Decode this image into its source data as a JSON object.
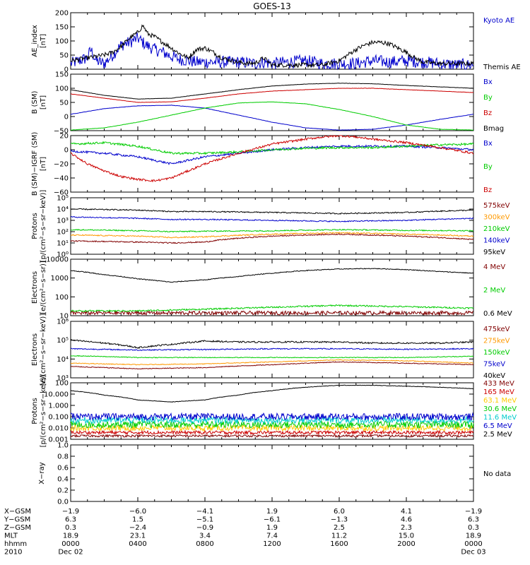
{
  "title": "GOES-13",
  "chart_data": [
    {
      "type": "line",
      "ylabel": "AE_index",
      "yunit": "[nT]",
      "yscale": "linear",
      "ylim": [
        0,
        200
      ],
      "yticks": [
        0,
        50,
        100,
        150,
        200
      ],
      "ytick_labels": [
        "0",
        "50",
        "100",
        "150",
        "200"
      ],
      "series": [
        {
          "name": "Kyoto AE",
          "color": "#0000cc",
          "noise": 22,
          "x": [
            0,
            0.5,
            1,
            1.2,
            1.5,
            2,
            2.5,
            3,
            3.5,
            4,
            4.5,
            5,
            5.5,
            6,
            6.5,
            7,
            7.5,
            8,
            9,
            10,
            11,
            11.5,
            12,
            13,
            14,
            15,
            16,
            17,
            18,
            19,
            20,
            21,
            22,
            23,
            24
          ],
          "y": [
            20,
            30,
            40,
            70,
            30,
            20,
            50,
            85,
            95,
            110,
            85,
            70,
            60,
            45,
            35,
            30,
            25,
            25,
            25,
            25,
            20,
            25,
            20,
            25,
            30,
            20,
            20,
            20,
            30,
            25,
            30,
            25,
            20,
            15,
            15
          ]
        },
        {
          "name": "Themis AE",
          "color": "#000000",
          "noise": 8,
          "x": [
            0,
            0.5,
            1,
            1.5,
            2,
            2.5,
            3,
            3.5,
            4,
            4.3,
            4.6,
            5,
            5.5,
            6,
            6.5,
            7,
            7.5,
            8,
            8.5,
            9,
            10,
            10.5,
            11,
            11.5,
            12,
            13,
            14,
            15,
            16,
            16.5,
            17,
            17.5,
            18,
            18.5,
            19,
            19.5,
            20,
            20.5,
            21,
            22,
            23,
            24
          ],
          "y": [
            30,
            35,
            40,
            45,
            50,
            60,
            80,
            110,
            130,
            155,
            125,
            115,
            95,
            75,
            55,
            40,
            70,
            75,
            60,
            40,
            25,
            20,
            22,
            40,
            15,
            15,
            15,
            15,
            30,
            50,
            70,
            85,
            95,
            95,
            90,
            75,
            60,
            40,
            25,
            20,
            20,
            20
          ]
        }
      ]
    },
    {
      "type": "line",
      "ylabel": "B (SM)",
      "yunit": "[nT]",
      "yscale": "linear",
      "ylim": [
        -50,
        150
      ],
      "yticks": [
        -50,
        0,
        50,
        100,
        150
      ],
      "ytick_labels": [
        "−50",
        "0",
        "50",
        "100",
        "150"
      ],
      "series": [
        {
          "name": "Bx",
          "color": "#0000cc",
          "noise": 0.5,
          "x": [
            0,
            2,
            4,
            6,
            8,
            10,
            12,
            14,
            16,
            18,
            20,
            22,
            24
          ],
          "y": [
            8,
            28,
            38,
            40,
            30,
            5,
            -20,
            -40,
            -48,
            -45,
            -30,
            -10,
            8
          ]
        },
        {
          "name": "By",
          "color": "#00cc00",
          "noise": 0.5,
          "x": [
            0,
            2,
            4,
            6,
            8,
            10,
            12,
            14,
            16,
            18,
            20,
            22,
            24
          ],
          "y": [
            -48,
            -40,
            -20,
            5,
            30,
            48,
            52,
            45,
            25,
            0,
            -30,
            -45,
            -48
          ]
        },
        {
          "name": "Bz",
          "color": "#cc0000",
          "noise": 0.5,
          "x": [
            0,
            2,
            4,
            6,
            8,
            10,
            12,
            14,
            16,
            18,
            20,
            22,
            24
          ],
          "y": [
            80,
            65,
            50,
            52,
            65,
            80,
            90,
            95,
            100,
            100,
            95,
            90,
            85
          ]
        },
        {
          "name": "Bmag",
          "color": "#000000",
          "noise": 0.5,
          "x": [
            0,
            2,
            4,
            6,
            8,
            10,
            12,
            14,
            16,
            18,
            20,
            22,
            24
          ],
          "y": [
            95,
            75,
            62,
            65,
            80,
            95,
            108,
            115,
            118,
            116,
            110,
            105,
            100
          ]
        }
      ]
    },
    {
      "type": "line",
      "ylabel": "B (SM)−IGRF (SM)",
      "yunit": "[nT]",
      "yscale": "linear",
      "ylim": [
        -60,
        20
      ],
      "yticks": [
        -60,
        -40,
        -20,
        0,
        20
      ],
      "ytick_labels": [
        "−60",
        "−40",
        "−20",
        "0",
        "20"
      ],
      "series": [
        {
          "name": "Bx",
          "color": "#0000cc",
          "noise": 1.5,
          "x": [
            0,
            2,
            4,
            6,
            8,
            10,
            12,
            14,
            16,
            18,
            20,
            22,
            24
          ],
          "y": [
            -2,
            -5,
            -10,
            -20,
            -10,
            -5,
            0,
            3,
            5,
            5,
            5,
            3,
            0
          ]
        },
        {
          "name": "By",
          "color": "#00cc00",
          "noise": 1.5,
          "x": [
            0,
            2,
            4,
            6,
            8,
            10,
            12,
            14,
            16,
            18,
            20,
            22,
            24
          ],
          "y": [
            8,
            10,
            5,
            -5,
            -5,
            -3,
            0,
            2,
            3,
            3,
            5,
            7,
            8
          ]
        },
        {
          "name": "Bz",
          "color": "#cc0000",
          "noise": 1.5,
          "x": [
            0,
            1,
            2,
            3,
            4,
            5,
            6,
            7,
            8,
            10,
            12,
            14,
            15,
            16,
            17,
            18,
            20,
            22,
            24
          ],
          "y": [
            -5,
            -20,
            -30,
            -38,
            -42,
            -44,
            -40,
            -30,
            -20,
            -5,
            8,
            15,
            18,
            20,
            18,
            15,
            10,
            3,
            -5
          ]
        }
      ]
    },
    {
      "type": "line",
      "ylabel": "Protons",
      "yunit": "[p/(cm²−s−sr−keV)]",
      "yscale": "log",
      "ylim": [
        1,
        100000
      ],
      "yticks": [
        1,
        10,
        100,
        1000,
        10000,
        100000
      ],
      "ytick_labels": [
        "10⁰",
        "10¹",
        "10²",
        "10³",
        "10⁴",
        "10⁵"
      ],
      "series": [
        {
          "name": "575keV",
          "color": "#800000",
          "noise": 0.05,
          "x": [
            0,
            4,
            6,
            8,
            12,
            16,
            20,
            24
          ],
          "y": [
            15,
            12,
            10,
            12,
            40,
            60,
            40,
            20
          ]
        },
        {
          "name": "300keV",
          "color": "#ff9900",
          "noise": 0.05,
          "x": [
            0,
            4,
            6,
            8,
            12,
            16,
            20,
            24
          ],
          "y": [
            50,
            40,
            30,
            35,
            60,
            80,
            60,
            40
          ]
        },
        {
          "name": "210keV",
          "color": "#00cc00",
          "noise": 0.05,
          "x": [
            0,
            4,
            6,
            8,
            12,
            16,
            20,
            24
          ],
          "y": [
            150,
            120,
            100,
            110,
            120,
            150,
            130,
            120
          ]
        },
        {
          "name": "140keV",
          "color": "#0000cc",
          "noise": 0.05,
          "x": [
            0,
            4,
            6,
            8,
            12,
            16,
            20,
            24
          ],
          "y": [
            2000,
            1500,
            1200,
            1200,
            1000,
            800,
            1000,
            1500
          ]
        },
        {
          "name": "95keV",
          "color": "#000000",
          "noise": 0.05,
          "x": [
            0,
            4,
            6,
            8,
            12,
            16,
            20,
            24
          ],
          "y": [
            10000,
            8000,
            6000,
            6000,
            5000,
            4000,
            5000,
            8000
          ]
        }
      ]
    },
    {
      "type": "line",
      "ylabel": "Electrons",
      "yunit": "[e/(cm²−s−sr)]",
      "yscale": "log",
      "ylim": [
        10,
        10000
      ],
      "yticks": [
        10,
        100,
        1000,
        10000
      ],
      "ytick_labels": [
        "10",
        "100",
        "1000",
        "10000"
      ],
      "series": [
        {
          "name": "4 MeV",
          "color": "#800000",
          "noise": 0.1,
          "x": [
            0,
            6,
            12,
            18,
            24
          ],
          "y": [
            14,
            14,
            14,
            14,
            14
          ]
        },
        {
          "name": "2 MeV",
          "color": "#00cc00",
          "noise": 0.04,
          "x": [
            0,
            4,
            8,
            12,
            16,
            20,
            24
          ],
          "y": [
            18,
            18,
            22,
            28,
            35,
            30,
            25
          ]
        },
        {
          "name": "0.6 MeV",
          "color": "#000000",
          "noise": 0.02,
          "x": [
            0,
            2,
            4,
            6,
            8,
            10,
            12,
            14,
            16,
            18,
            20,
            22,
            24
          ],
          "y": [
            2500,
            1500,
            900,
            600,
            800,
            1200,
            1800,
            2500,
            3000,
            3200,
            2800,
            2200,
            1800
          ]
        }
      ]
    },
    {
      "type": "line",
      "ylabel": "Electrons",
      "yunit": "[e/(cm²−s−sr−keV)]",
      "yscale": "log",
      "ylim": [
        1000,
        1000000
      ],
      "yticks": [
        1000,
        10000,
        100000,
        1000000
      ],
      "ytick_labels": [
        "10³",
        "10⁴",
        "10⁵",
        "10⁶"
      ],
      "series": [
        {
          "name": "475keV",
          "color": "#800000",
          "noise": 0.02,
          "x": [
            0,
            4,
            8,
            12,
            16,
            20,
            24
          ],
          "y": [
            4000,
            3000,
            3500,
            5000,
            7000,
            6000,
            5000
          ]
        },
        {
          "name": "275keV",
          "color": "#ff9900",
          "noise": 0.02,
          "x": [
            0,
            4,
            8,
            12,
            16,
            20,
            24
          ],
          "y": [
            6000,
            5000,
            5500,
            7000,
            9000,
            8000,
            6000
          ]
        },
        {
          "name": "150keV",
          "color": "#00cc00",
          "noise": 0.02,
          "x": [
            0,
            4,
            8,
            12,
            16,
            20,
            24
          ],
          "y": [
            15000,
            12000,
            12000,
            12000,
            12000,
            12000,
            14000
          ]
        },
        {
          "name": "75keV",
          "color": "#0000cc",
          "noise": 0.03,
          "x": [
            0,
            4,
            8,
            12,
            16,
            20,
            24
          ],
          "y": [
            35000,
            30000,
            32000,
            35000,
            35000,
            33000,
            35000
          ]
        },
        {
          "name": "40keV",
          "color": "#000000",
          "noise": 0.04,
          "x": [
            0,
            2,
            4,
            6,
            8,
            10,
            12,
            14,
            16,
            18,
            20,
            22,
            24
          ],
          "y": [
            100000,
            70000,
            40000,
            60000,
            90000,
            80000,
            80000,
            80000,
            80000,
            70000,
            70000,
            70000,
            80000
          ]
        }
      ]
    },
    {
      "type": "line",
      "ylabel": "Protons",
      "yunit": "[p/(cm²−s−sr−keV)]",
      "yscale": "log",
      "ylim": [
        0.001,
        100
      ],
      "yticks": [
        0.001,
        0.01,
        0.1,
        1,
        10,
        100
      ],
      "ytick_labels": [
        "0.001",
        "0.010",
        "0.100",
        "1.000",
        "10.000",
        "100"
      ],
      "series": [
        {
          "name": "433 MeV",
          "color": "#800000",
          "noise": 0.1,
          "x": [
            0,
            12,
            24
          ],
          "y": [
            0.002,
            0.002,
            0.002
          ]
        },
        {
          "name": "165 MeV",
          "color": "#cc0000",
          "noise": 0.15,
          "x": [
            0,
            12,
            24
          ],
          "y": [
            0.004,
            0.004,
            0.004
          ]
        },
        {
          "name": "63.1 MeV",
          "color": "#ffcc00",
          "noise": 0.25,
          "x": [
            0,
            12,
            24
          ],
          "y": [
            0.01,
            0.01,
            0.01
          ]
        },
        {
          "name": "30.6 MeV",
          "color": "#00cc00",
          "noise": 0.3,
          "x": [
            0,
            12,
            24
          ],
          "y": [
            0.02,
            0.02,
            0.02
          ]
        },
        {
          "name": "11.6 MeV",
          "color": "#00cccc",
          "noise": 0.3,
          "x": [
            0,
            12,
            24
          ],
          "y": [
            0.05,
            0.05,
            0.05
          ]
        },
        {
          "name": "6.5 MeV",
          "color": "#0000cc",
          "noise": 0.3,
          "x": [
            0,
            12,
            24
          ],
          "y": [
            0.1,
            0.1,
            0.1
          ]
        },
        {
          "name": "2.5 MeV",
          "color": "#000000",
          "noise": 0.02,
          "x": [
            0,
            2,
            4,
            6,
            8,
            10,
            12,
            14,
            16,
            18,
            20,
            22,
            24
          ],
          "y": [
            20,
            8,
            3,
            2,
            3,
            8,
            20,
            40,
            60,
            60,
            50,
            40,
            30
          ]
        }
      ]
    },
    {
      "type": "line",
      "ylabel": "X−ray",
      "yunit": "",
      "yscale": "linear",
      "ylim": [
        0,
        1
      ],
      "yticks": [
        0,
        0.2,
        0.4,
        0.6,
        0.8,
        1.0
      ],
      "ytick_labels": [
        "0.0",
        "0.2",
        "0.4",
        "0.6",
        "0.8",
        "1.0"
      ],
      "note": "No data",
      "series": []
    }
  ],
  "orbit_table": {
    "rows": [
      {
        "label": "X−GSM",
        "values": [
          "−1.9",
          "−6.0",
          "−4.1",
          "1.9",
          "6.0",
          "4.1",
          "−1.9"
        ]
      },
      {
        "label": "Y−GSM",
        "values": [
          "6.3",
          "1.5",
          "−5.1",
          "−6.1",
          "−1.3",
          "4.6",
          "6.3"
        ]
      },
      {
        "label": "Z−GSM",
        "values": [
          "0.3",
          "−2.4",
          "−0.9",
          "1.9",
          "2.5",
          "2.3",
          "0.3"
        ]
      },
      {
        "label": "MLT",
        "values": [
          "18.9",
          "23.1",
          "3.4",
          "7.4",
          "11.2",
          "15.0",
          "18.9"
        ]
      },
      {
        "label": "hhmm",
        "values": [
          "0000",
          "0400",
          "0800",
          "1200",
          "1600",
          "2000",
          "0000"
        ]
      },
      {
        "label": "2010",
        "values": [
          "Dec 02",
          "",
          "",
          "",
          "",
          "",
          "Dec 03"
        ]
      }
    ]
  }
}
